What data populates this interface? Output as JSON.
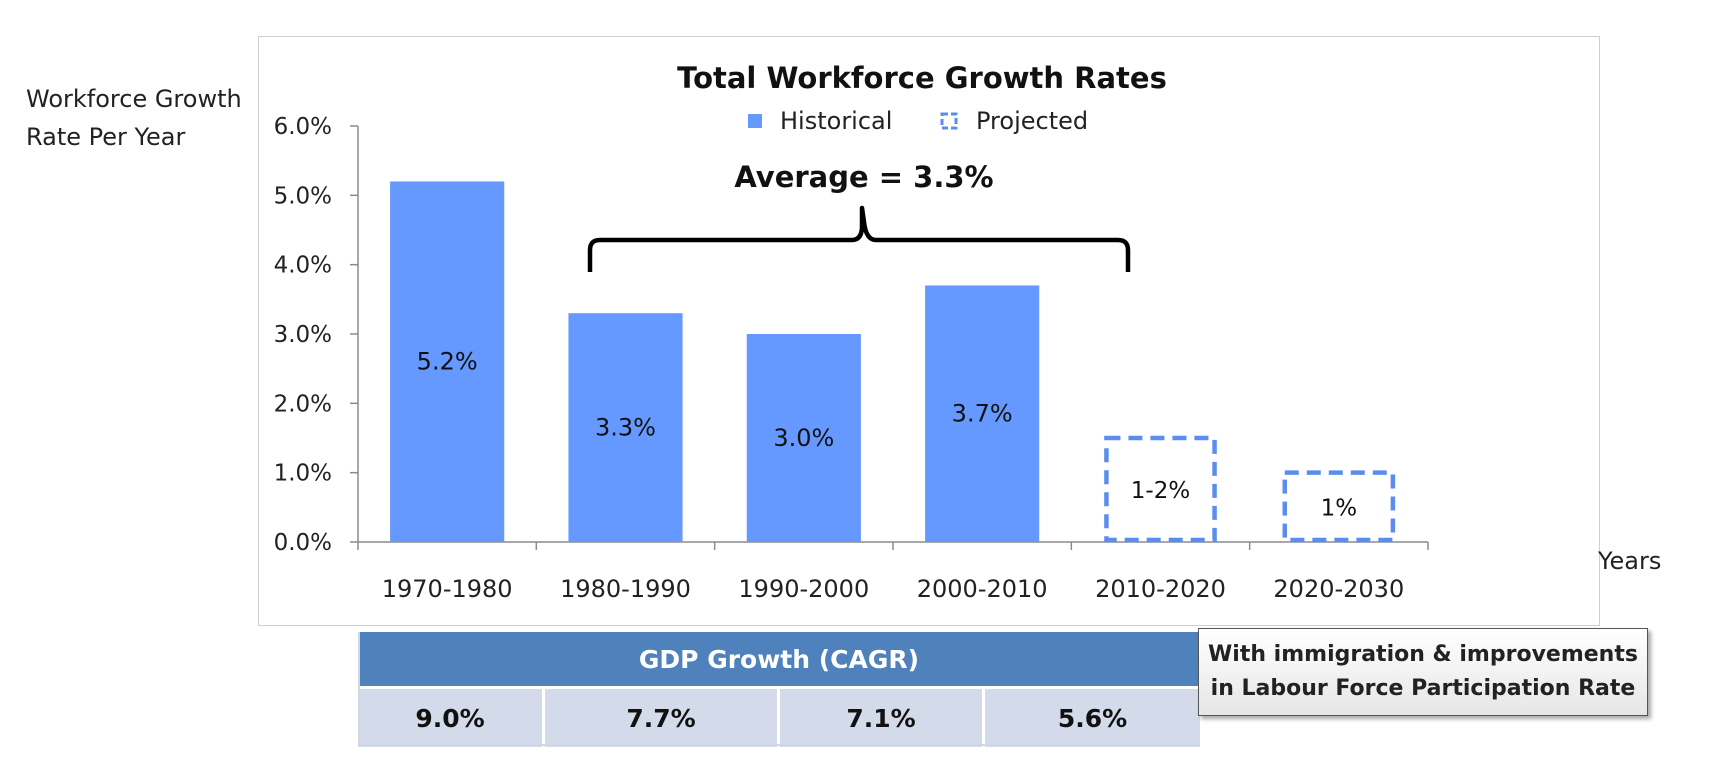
{
  "chart_data": {
    "type": "bar",
    "title": "Total Workforce Growth Rates",
    "ylabel": "Workforce Growth Rate Per Year",
    "xlabel": "Years",
    "ylim": [
      0,
      6
    ],
    "yticks": [
      "0.0%",
      "1.0%",
      "2.0%",
      "3.0%",
      "4.0%",
      "5.0%",
      "6.0%"
    ],
    "categories": [
      "1970-1980",
      "1980-1990",
      "1990-2000",
      "2000-2010",
      "2010-2020",
      "2020-2030"
    ],
    "series": [
      {
        "name": "Historical",
        "values": [
          5.2,
          3.3,
          3.0,
          3.7,
          null,
          null
        ],
        "labels": [
          "5.2%",
          "3.3%",
          "3.0%",
          "3.7%",
          "",
          ""
        ]
      },
      {
        "name": "Projected",
        "values": [
          null,
          null,
          null,
          null,
          1.5,
          1.0
        ],
        "range": [
          null,
          null,
          null,
          null,
          [
            1,
            2
          ],
          null
        ],
        "labels": [
          "",
          "",
          "",
          "",
          "1-2%",
          "1%"
        ]
      }
    ],
    "legend_position": "top-center",
    "grid": false,
    "annotation": {
      "text": "Average = 3.3%",
      "from": "1980-1990",
      "to": "2000-2010"
    },
    "colors": {
      "historical": "#6699ff",
      "projected": "#5b8def"
    }
  },
  "gdp": {
    "header": "GDP Growth (CAGR)",
    "values": [
      "9.0%",
      "7.7%",
      "7.1%",
      "5.6%"
    ]
  },
  "note": {
    "line1": "With immigration & improvements",
    "line2": "in Labour Force Participation Rate"
  }
}
